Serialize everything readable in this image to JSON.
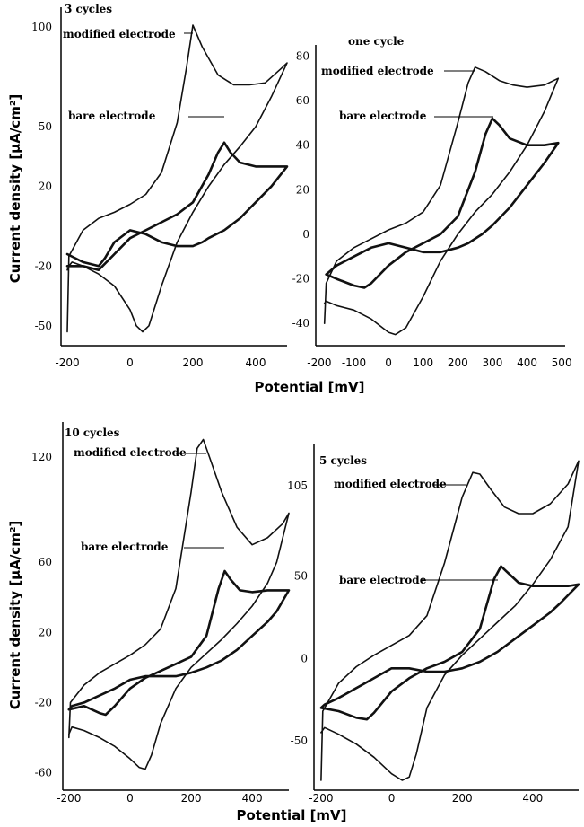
{
  "figure": {
    "y_label_top": "Current density [µA/cm²]",
    "y_label_bottom": "Current density [µA/cm²]",
    "x_label_top": "Potential [mV]",
    "x_label_bottom": "Potential [mV]"
  },
  "chart_data": [
    {
      "type": "line",
      "title": "3 cycles",
      "xlabel": "Potential [mV]",
      "ylabel": "Current density [µA/cm²]",
      "xlim": [
        -220,
        500
      ],
      "ylim": [
        -60,
        110
      ],
      "xticks": [
        "-200",
        "0",
        "200",
        "400"
      ],
      "xtick_values": [
        -200,
        0,
        200,
        400
      ],
      "yticks": [
        "100",
        "50",
        "20",
        "-20",
        "-50"
      ],
      "ytick_values": [
        100,
        50,
        20,
        -20,
        -50
      ],
      "annotations": [
        "modified electrode",
        "bare electrode"
      ],
      "series": [
        {
          "name": "modified electrode",
          "x": [
            -200,
            -195,
            -150,
            -100,
            -50,
            0,
            50,
            100,
            150,
            180,
            200,
            230,
            280,
            330,
            380,
            430,
            480,
            500,
            500,
            450,
            400,
            350,
            300,
            250,
            200,
            150,
            100,
            60,
            40,
            20,
            0,
            -50,
            -100,
            -150,
            -185,
            -195,
            -200
          ],
          "y": [
            -53,
            -15,
            -2,
            4,
            7,
            11,
            16,
            27,
            52,
            80,
            101,
            90,
            76,
            71,
            71,
            72,
            79,
            82,
            82,
            65,
            50,
            40,
            31,
            20,
            7,
            -8,
            -30,
            -50,
            -53,
            -50,
            -42,
            -30,
            -24,
            -20,
            -18,
            -20,
            -22
          ]
        },
        {
          "name": "bare electrode",
          "x": [
            -200,
            -150,
            -100,
            -50,
            0,
            50,
            100,
            150,
            200,
            250,
            280,
            300,
            320,
            350,
            400,
            450,
            500,
            500,
            450,
            400,
            350,
            300,
            250,
            230,
            200,
            150,
            100,
            50,
            0,
            -50,
            -80,
            -100,
            -150,
            -200
          ],
          "y": [
            -20,
            -20,
            -22,
            -14,
            -6,
            -2,
            2,
            6,
            12,
            26,
            37,
            42,
            37,
            32,
            30,
            30,
            30,
            30,
            20,
            12,
            4,
            -2,
            -6,
            -8,
            -10,
            -10,
            -8,
            -4,
            -2,
            -8,
            -16,
            -20,
            -18,
            -14
          ]
        }
      ]
    },
    {
      "type": "line",
      "title": "one cycle",
      "xlabel": "Potential [mV]",
      "ylabel": "Current density [µA/cm²]",
      "xlim": [
        -210,
        510
      ],
      "ylim": [
        -50,
        85
      ],
      "xticks": [
        "-200",
        "-100",
        "0",
        "100",
        "200",
        "300",
        "400",
        "500"
      ],
      "xtick_values": [
        -200,
        -100,
        0,
        100,
        200,
        300,
        400,
        500
      ],
      "yticks": [
        "80",
        "60",
        "40",
        "20",
        "0",
        "-20",
        "-40"
      ],
      "ytick_values": [
        80,
        60,
        40,
        20,
        0,
        -20,
        -40
      ],
      "annotations": [
        "modified electrode",
        "bare electrode"
      ],
      "series": [
        {
          "name": "modified electrode",
          "x": [
            -185,
            -180,
            -150,
            -100,
            -50,
            0,
            50,
            100,
            150,
            200,
            230,
            250,
            280,
            320,
            360,
            400,
            450,
            490,
            490,
            450,
            400,
            350,
            300,
            250,
            200,
            150,
            100,
            50,
            20,
            0,
            -50,
            -100,
            -150,
            -180,
            -185
          ],
          "y": [
            -40,
            -22,
            -12,
            -6,
            -2,
            2,
            5,
            10,
            22,
            50,
            68,
            75,
            73,
            69,
            67,
            66,
            67,
            70,
            70,
            55,
            40,
            28,
            18,
            10,
            0,
            -12,
            -28,
            -42,
            -45,
            -44,
            -38,
            -34,
            -32,
            -30,
            -31
          ]
        },
        {
          "name": "bare electrode",
          "x": [
            -180,
            -150,
            -100,
            -70,
            -50,
            0,
            50,
            100,
            150,
            200,
            250,
            280,
            300,
            320,
            350,
            400,
            450,
            490,
            490,
            450,
            400,
            350,
            300,
            270,
            250,
            230,
            200,
            150,
            100,
            50,
            0,
            -50,
            -100,
            -150,
            -180
          ],
          "y": [
            -18,
            -20,
            -23,
            -24,
            -22,
            -14,
            -8,
            -4,
            0,
            8,
            28,
            45,
            52,
            49,
            43,
            40,
            40,
            41,
            41,
            32,
            22,
            12,
            4,
            0,
            -2,
            -4,
            -6,
            -8,
            -8,
            -6,
            -4,
            -6,
            -10,
            -14,
            -18
          ]
        }
      ]
    },
    {
      "type": "line",
      "title": "10 cycles",
      "xlabel": "Potential [mV]",
      "ylabel": "Current density [µA/cm²]",
      "xlim": [
        -220,
        520
      ],
      "ylim": [
        -70,
        140
      ],
      "xticks": [
        "-200",
        "0",
        "200",
        "400"
      ],
      "xtick_values": [
        -200,
        0,
        200,
        400
      ],
      "yticks": [
        "120",
        "60",
        "20",
        "-20",
        "-60"
      ],
      "ytick_values": [
        120,
        60,
        20,
        -20,
        -60
      ],
      "annotations": [
        "modified electrode",
        "bare electrode"
      ],
      "series": [
        {
          "name": "modified electrode",
          "x": [
            -200,
            -195,
            -150,
            -100,
            -50,
            0,
            50,
            100,
            150,
            200,
            220,
            240,
            260,
            300,
            350,
            400,
            450,
            500,
            520,
            520,
            480,
            450,
            400,
            350,
            300,
            250,
            200,
            150,
            100,
            70,
            50,
            30,
            0,
            -50,
            -100,
            -150,
            -190,
            -200
          ],
          "y": [
            -40,
            -20,
            -10,
            -3,
            2,
            7,
            13,
            22,
            45,
            100,
            125,
            130,
            120,
            100,
            80,
            70,
            74,
            82,
            88,
            88,
            60,
            48,
            35,
            25,
            16,
            8,
            0,
            -12,
            -32,
            -50,
            -58,
            -57,
            -52,
            -45,
            -40,
            -36,
            -34,
            -38
          ]
        },
        {
          "name": "bare electrode",
          "x": [
            -200,
            -150,
            -100,
            -80,
            -50,
            0,
            50,
            100,
            150,
            200,
            250,
            290,
            310,
            330,
            360,
            400,
            450,
            500,
            520,
            520,
            480,
            450,
            400,
            350,
            300,
            250,
            200,
            150,
            100,
            50,
            0,
            -50,
            -100,
            -150,
            -190,
            -200
          ],
          "y": [
            -24,
            -22,
            -26,
            -27,
            -22,
            -12,
            -6,
            -2,
            2,
            6,
            18,
            45,
            55,
            50,
            44,
            43,
            44,
            44,
            44,
            44,
            32,
            26,
            18,
            10,
            4,
            0,
            -3,
            -5,
            -5,
            -5,
            -7,
            -12,
            -16,
            -20,
            -22,
            -24
          ]
        }
      ]
    },
    {
      "type": "line",
      "title": "5 cycles",
      "xlabel": "Potential [mV]",
      "ylabel": "Current density [µA/cm²]",
      "xlim": [
        -220,
        530
      ],
      "ylim": [
        -80,
        130
      ],
      "xticks": [
        "-200",
        "0",
        "200",
        "400"
      ],
      "xtick_values": [
        -200,
        0,
        200,
        400
      ],
      "yticks": [
        "105",
        "50",
        "0",
        "-50"
      ],
      "ytick_values": [
        105,
        50,
        0,
        -50
      ],
      "annotations": [
        "modified electrode",
        "bare electrode"
      ],
      "series": [
        {
          "name": "modified electrode",
          "x": [
            -200,
            -195,
            -150,
            -100,
            -50,
            0,
            50,
            100,
            150,
            200,
            230,
            250,
            280,
            320,
            360,
            400,
            450,
            500,
            530,
            530,
            500,
            450,
            400,
            350,
            300,
            250,
            200,
            150,
            100,
            70,
            50,
            30,
            0,
            -50,
            -100,
            -150,
            -190,
            -200
          ],
          "y": [
            -74,
            -32,
            -15,
            -5,
            2,
            8,
            14,
            26,
            58,
            98,
            113,
            112,
            103,
            92,
            88,
            88,
            94,
            106,
            120,
            120,
            80,
            60,
            45,
            32,
            22,
            12,
            2,
            -10,
            -30,
            -58,
            -72,
            -74,
            -70,
            -60,
            -52,
            -46,
            -42,
            -45
          ]
        },
        {
          "name": "bare electrode",
          "x": [
            -200,
            -150,
            -100,
            -70,
            -50,
            0,
            50,
            100,
            150,
            200,
            250,
            290,
            310,
            330,
            360,
            400,
            450,
            500,
            530,
            530,
            480,
            450,
            400,
            350,
            300,
            250,
            200,
            150,
            100,
            50,
            0,
            -50,
            -100,
            -150,
            -190,
            -200
          ],
          "y": [
            -30,
            -32,
            -36,
            -37,
            -33,
            -20,
            -12,
            -6,
            -2,
            4,
            18,
            48,
            56,
            52,
            46,
            44,
            44,
            44,
            45,
            45,
            34,
            28,
            20,
            12,
            4,
            -2,
            -6,
            -8,
            -8,
            -6,
            -6,
            -12,
            -18,
            -24,
            -28,
            -30
          ]
        }
      ]
    }
  ]
}
